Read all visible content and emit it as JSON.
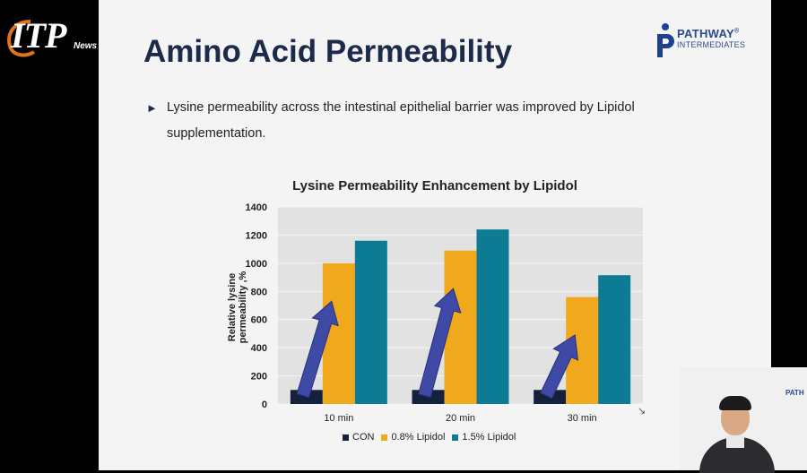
{
  "channel_logo": {
    "main": "ITP",
    "sub": "News"
  },
  "slide": {
    "title": "Amino Acid Permeability",
    "bullet": "Lysine permeability across the intestinal epithelial barrier was improved by Lipidol supplementation.",
    "brand": {
      "name": "PATHWAY",
      "sub": "INTERMEDIATES",
      "mark": "®"
    }
  },
  "chart_data": {
    "type": "bar",
    "title": "Lysine Permeability Enhancement by Lipidol",
    "ylabel": "Relative lysine permeability ,%",
    "xlabel": "",
    "categories": [
      "10 min",
      "20 min",
      "30 min"
    ],
    "series": [
      {
        "name": "CON",
        "values": [
          100,
          100,
          100
        ],
        "color": "#14213d"
      },
      {
        "name": "0.8% Lipidol",
        "values": [
          1000,
          1090,
          760
        ],
        "color": "#f0a81c"
      },
      {
        "name": "1.5% Lipidol",
        "values": [
          1160,
          1240,
          915
        ],
        "color": "#0d7b94"
      }
    ],
    "ylim": [
      0,
      1400
    ],
    "yticks": [
      0,
      200,
      400,
      600,
      800,
      1000,
      1200,
      1400
    ],
    "grid": true,
    "legend_position": "bottom",
    "annotations": [
      "arrow-up",
      "arrow-up",
      "arrow-up"
    ],
    "arrow_color": "#3e4aa6"
  },
  "webcam": {
    "logo": "PATH"
  }
}
